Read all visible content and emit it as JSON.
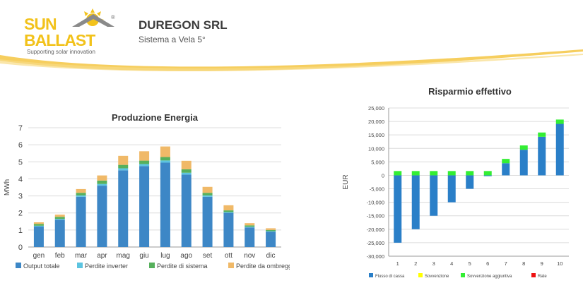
{
  "header": {
    "logo_line1": "SUN",
    "logo_line2": "BALLAST",
    "logo_reg": "®",
    "logo_tagline": "Supporting solar innovation",
    "company": "DUREGON SRL",
    "system": "Sistema a Vela 5°"
  },
  "colors": {
    "brand_yellow": "#f2c21b",
    "output": "#3d87c6",
    "inverter": "#5cc4e0",
    "sistema": "#56b05c",
    "ombreggiamento": "#f0b968",
    "flusso": "#2a7fc8",
    "sovvenzione": "#ffff00",
    "aggiuntiva": "#33ee33",
    "rate": "#ee1111"
  },
  "chart_data": [
    {
      "type": "bar",
      "stacked": true,
      "title": "Produzione Energia",
      "xlabel": "",
      "ylabel": "MWh",
      "ylim": [
        0,
        7
      ],
      "yticks": [
        "0",
        "1",
        "2",
        "3",
        "4",
        "5",
        "6",
        "7"
      ],
      "grid": true,
      "legend": "bottom",
      "categories": [
        "gen",
        "feb",
        "mar",
        "apr",
        "mag",
        "giu",
        "lug",
        "ago",
        "set",
        "ott",
        "nov",
        "dic"
      ],
      "series": [
        {
          "name": "Output totale",
          "values": [
            1.2,
            1.6,
            2.95,
            3.6,
            4.5,
            4.75,
            4.95,
            4.25,
            2.95,
            2.0,
            1.15,
            0.9
          ]
        },
        {
          "name": "Perdite inverter",
          "values": [
            0.05,
            0.05,
            0.08,
            0.1,
            0.12,
            0.12,
            0.13,
            0.11,
            0.08,
            0.05,
            0.04,
            0.03
          ]
        },
        {
          "name": "Perdite di sistema",
          "values": [
            0.1,
            0.12,
            0.15,
            0.2,
            0.2,
            0.2,
            0.2,
            0.2,
            0.15,
            0.1,
            0.08,
            0.07
          ]
        },
        {
          "name": "Perdite da ombreggiamento",
          "values": [
            0.1,
            0.13,
            0.22,
            0.3,
            0.53,
            0.55,
            0.62,
            0.5,
            0.35,
            0.3,
            0.13,
            0.1
          ]
        }
      ]
    },
    {
      "type": "bar",
      "title": "Risparmio effettivo",
      "xlabel": "",
      "ylabel": "EUR",
      "ylim": [
        -30000,
        25000
      ],
      "yticks": [
        "-30,000",
        "-25,000",
        "-20,000",
        "-15,000",
        "-10,000",
        "-5,000",
        "0",
        "5,000",
        "10,000",
        "15,000",
        "20,000",
        "25,000"
      ],
      "grid": true,
      "legend": "bottom",
      "categories": [
        "1",
        "2",
        "3",
        "4",
        "5",
        "6",
        "7",
        "8",
        "9",
        "10"
      ],
      "series": [
        {
          "name": "Flusso di cassa",
          "values": [
            -25000,
            -20000,
            -15000,
            -10000,
            -5000,
            -300,
            4500,
            9500,
            14300,
            19100
          ]
        },
        {
          "name": "Sovvenzione",
          "values": [
            0,
            0,
            0,
            0,
            0,
            0,
            0,
            0,
            0,
            0
          ]
        },
        {
          "name": "Sovvenzione aggiuntiva",
          "values": [
            1600,
            1600,
            1600,
            1600,
            1600,
            1600,
            1600,
            1600,
            1600,
            1600
          ]
        },
        {
          "name": "Rate",
          "values": [
            0,
            0,
            0,
            0,
            0,
            0,
            0,
            0,
            0,
            0
          ]
        }
      ]
    }
  ]
}
